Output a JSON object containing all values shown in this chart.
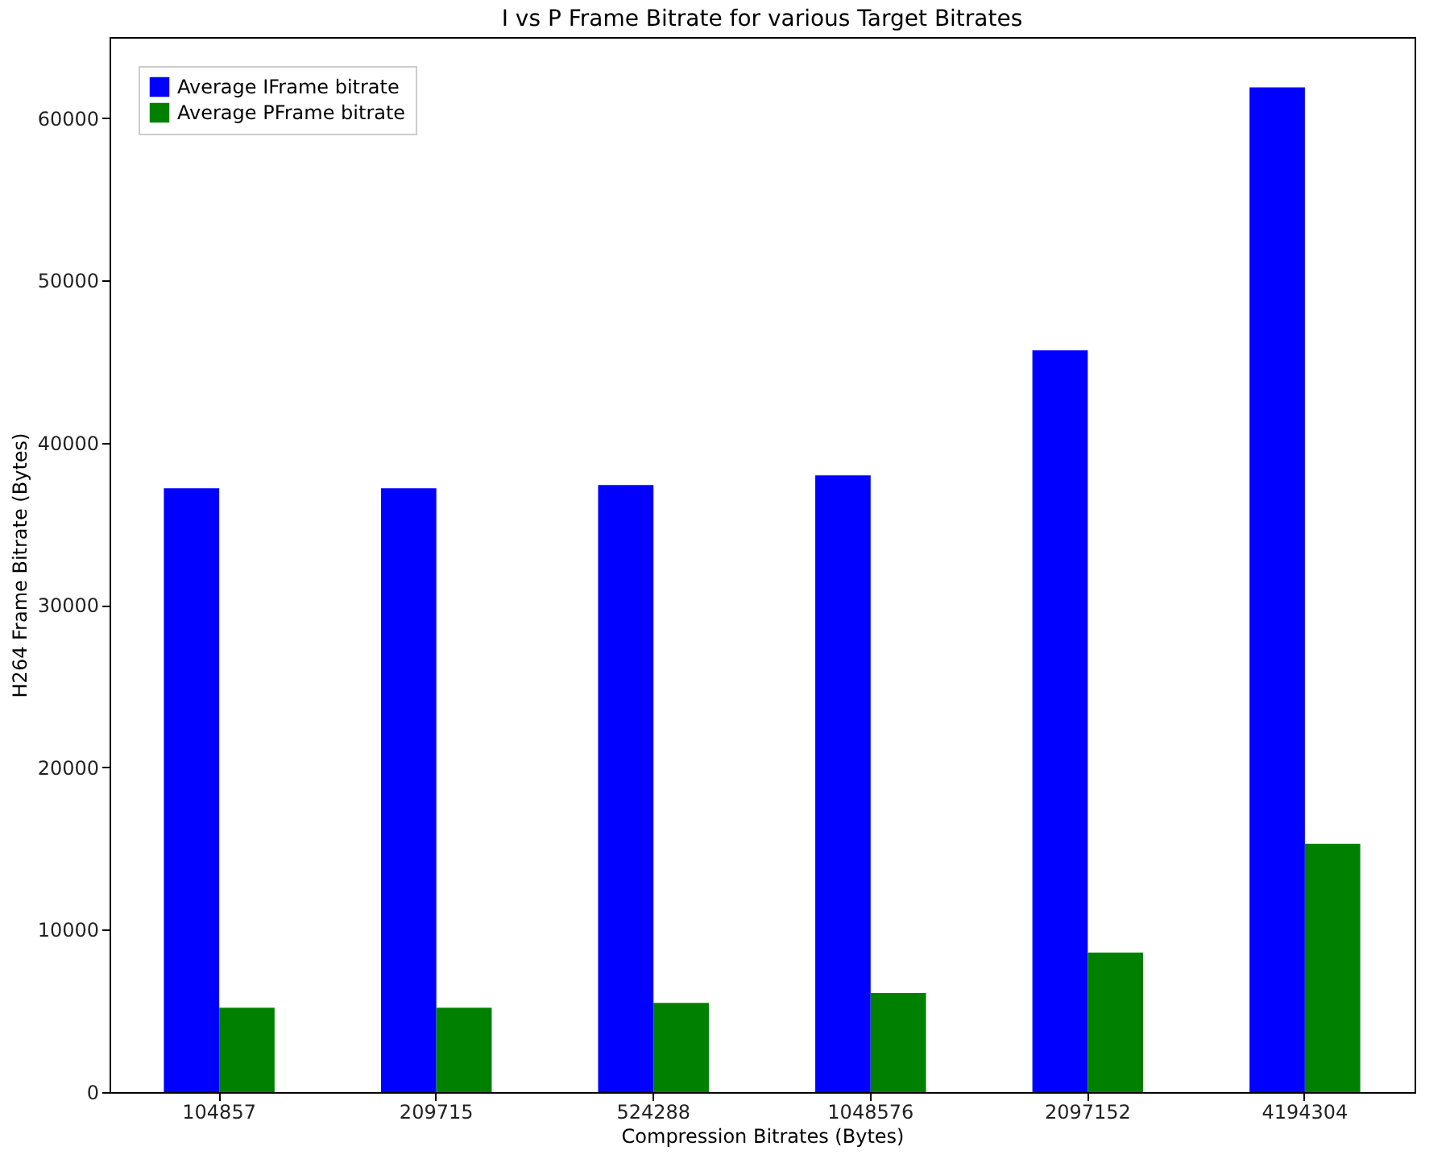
{
  "chart_data": {
    "type": "bar",
    "title": "I vs P Frame Bitrate for various Target Bitrates",
    "xlabel": "Compression Bitrates (Bytes)",
    "ylabel": "H264 Frame Bitrate (Bytes)",
    "categories": [
      "104857",
      "209715",
      "524288",
      "1048576",
      "2097152",
      "4194304"
    ],
    "series": [
      {
        "name": "Average IFrame bitrate",
        "color": "#0000ff",
        "values": [
          37200,
          37200,
          37400,
          38000,
          45700,
          61900
        ]
      },
      {
        "name": "Average PFrame bitrate",
        "color": "#008000",
        "values": [
          5200,
          5200,
          5500,
          6100,
          8600,
          15300
        ]
      }
    ],
    "ylim": [
      0,
      65000
    ],
    "yticks": [
      0,
      10000,
      20000,
      30000,
      40000,
      50000,
      60000
    ],
    "grid": false,
    "legend": "top left"
  }
}
